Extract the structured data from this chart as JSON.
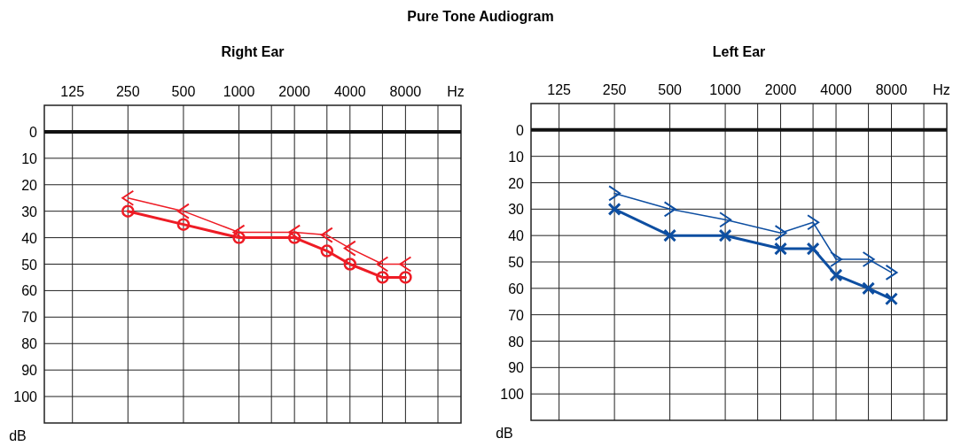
{
  "chart_data": [
    {
      "type": "line",
      "title": "Pure Tone Audiogram",
      "subtitle": "Right Ear",
      "xlabel": "Hz",
      "ylabel": "dB",
      "log": "x",
      "xlim": [
        88,
        16000
      ],
      "ylim": [
        110,
        -10
      ],
      "xticks": [
        125,
        250,
        500,
        1000,
        {
          "value": 1500,
          "label": null
        },
        2000,
        {
          "value": 3000,
          "label": null
        },
        4000,
        {
          "value": 6000,
          "label": null
        },
        8000,
        {
          "value": 12000,
          "label": null
        }
      ],
      "yticks": [
        0,
        10,
        20,
        30,
        40,
        50,
        60,
        70,
        80,
        90,
        100
      ],
      "grid": true,
      "line_style": "solid",
      "ref_lines": [
        {
          "axis": "y",
          "value": 0,
          "color": "#111111"
        }
      ],
      "series": [
        {
          "color": "#ee1c25",
          "marker": "cross",
          "x": [
            250,
            500,
            1000,
            2000,
            3000,
            4000,
            6000,
            8000
          ],
          "values": [
            25,
            30,
            38,
            38,
            39,
            44,
            50,
            50
          ]
        },
        {
          "color": "#ee1c25",
          "marker": "circle",
          "x": [
            250,
            500,
            1000,
            2000,
            3000,
            4000,
            6000,
            8000
          ],
          "values": [
            30,
            35,
            40,
            40,
            45,
            50,
            55,
            55
          ]
        }
      ]
    },
    {
      "type": "line",
      "title": "Left Ear",
      "xlabel": "Hz",
      "ylabel": "dB",
      "log": "x",
      "xlim": [
        88,
        16000
      ],
      "ylim": [
        110,
        -10
      ],
      "xticks": [
        125,
        250,
        500,
        1000,
        {
          "value": 1500,
          "label": null
        },
        2000,
        {
          "value": 3000,
          "label": null
        },
        4000,
        {
          "value": 6000,
          "label": null
        },
        8000,
        {
          "value": 12000,
          "label": null
        }
      ],
      "yticks": [
        0,
        10,
        20,
        30,
        40,
        50,
        60,
        70,
        80,
        90,
        100
      ],
      "grid": true,
      "line_style": "solid",
      "ref_lines": [
        {
          "axis": "y",
          "value": 0,
          "color": "#111111"
        }
      ],
      "series": [
        {
          "color": "#0d4ea1",
          "marker": "cross",
          "x": [
            250,
            500,
            1000,
            2000,
            3000,
            4000,
            6000,
            8000
          ],
          "values": [
            24,
            30,
            34,
            39,
            35,
            49,
            49,
            54
          ]
        },
        {
          "color": "#0d4ea1",
          "marker": "cross",
          "x": [
            250,
            500,
            1000,
            2000,
            3000,
            4000,
            6000,
            8000
          ],
          "values": [
            30,
            40,
            40,
            45,
            45,
            55,
            60,
            64
          ]
        }
      ]
    }
  ]
}
